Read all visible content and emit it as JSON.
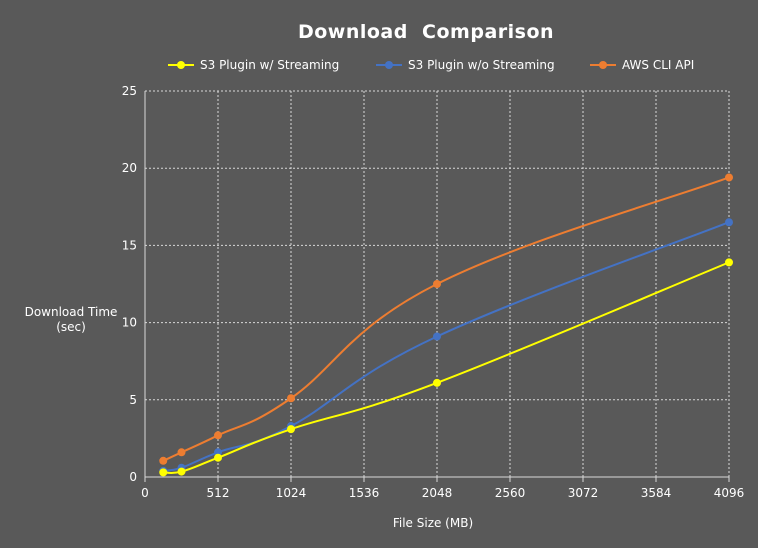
{
  "chart_data": {
    "type": "line",
    "title": "Download  Comparison",
    "xlabel": "File Size (MB)",
    "ylabel_lines": [
      "Download Time",
      "(sec)"
    ],
    "xlim": [
      0,
      4096
    ],
    "ylim": [
      0,
      25
    ],
    "x_ticks": [
      0,
      512,
      1024,
      1536,
      2048,
      2560,
      3072,
      3584,
      4096
    ],
    "y_ticks": [
      0,
      5,
      10,
      15,
      20,
      25
    ],
    "grid": true,
    "legend_position": "top",
    "series": [
      {
        "name": "S3 Plugin w/ Streaming",
        "color": "#ffff00",
        "points": [
          [
            128,
            0.3
          ],
          [
            256,
            0.35
          ],
          [
            512,
            1.25
          ],
          [
            1024,
            3.1
          ],
          [
            2048,
            6.1
          ],
          [
            4096,
            13.9
          ]
        ]
      },
      {
        "name": "S3 Plugin w/o Streaming",
        "color": "#4472c4",
        "points": [
          [
            128,
            0.4
          ],
          [
            256,
            0.6
          ],
          [
            512,
            1.6
          ],
          [
            1024,
            3.3
          ],
          [
            2048,
            9.1
          ],
          [
            4096,
            16.5
          ]
        ]
      },
      {
        "name": "AWS CLI API",
        "color": "#ed7d31",
        "points": [
          [
            128,
            1.05
          ],
          [
            256,
            1.6
          ],
          [
            512,
            2.7
          ],
          [
            1024,
            5.1
          ],
          [
            2048,
            12.5
          ],
          [
            4096,
            19.4
          ]
        ]
      }
    ]
  }
}
